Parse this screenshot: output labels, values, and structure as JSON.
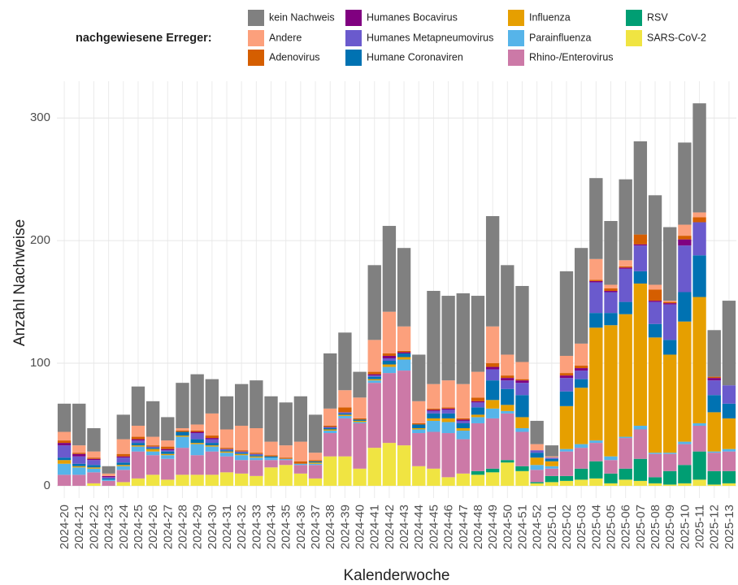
{
  "chart_data": {
    "type": "stacked_bar",
    "legend_title": "nachgewiesene Erreger:",
    "x_label": "Kalenderwoche",
    "y_label": "Anzahl Nachweise",
    "ylim": [
      -10,
      330
    ],
    "yticks": [
      0,
      100,
      200,
      300
    ],
    "grid": true,
    "categories": [
      "2024-20",
      "2024-21",
      "2024-22",
      "2024-23",
      "2024-24",
      "2024-25",
      "2024-26",
      "2024-27",
      "2024-28",
      "2024-29",
      "2024-30",
      "2024-31",
      "2024-32",
      "2024-33",
      "2024-34",
      "2024-35",
      "2024-36",
      "2024-37",
      "2024-38",
      "2024-39",
      "2024-40",
      "2024-41",
      "2024-42",
      "2024-43",
      "2024-44",
      "2024-45",
      "2024-46",
      "2024-47",
      "2024-48",
      "2024-49",
      "2024-50",
      "2024-51",
      "2024-52",
      "2025-01",
      "2025-02",
      "2025-03",
      "2025-04",
      "2025-05",
      "2025-06",
      "2025-07",
      "2025-08",
      "2025-09",
      "2025-10",
      "2025-11",
      "2025-12",
      "2025-13"
    ],
    "series": [
      {
        "name": "SARS-CoV-2",
        "color": "#f0e442",
        "values": [
          0,
          0,
          2,
          0,
          3,
          6,
          9,
          5,
          9,
          9,
          9,
          11,
          10,
          8,
          15,
          17,
          10,
          6,
          24,
          24,
          14,
          31,
          35,
          33,
          16,
          14,
          7,
          10,
          9,
          11,
          19,
          12,
          2,
          3,
          4,
          5,
          6,
          2,
          5,
          4,
          2,
          1,
          2,
          5,
          1,
          2
        ]
      },
      {
        "name": "RSV",
        "color": "#009e73",
        "values": [
          0,
          0,
          0,
          0,
          0,
          0,
          0,
          0,
          0,
          0,
          0,
          0,
          0,
          0,
          0,
          0,
          0,
          0,
          0,
          0,
          0,
          0,
          0,
          0,
          0,
          0,
          0,
          0,
          3,
          3,
          2,
          4,
          1,
          5,
          4,
          9,
          14,
          8,
          9,
          18,
          5,
          11,
          15,
          23,
          11,
          10
        ]
      },
      {
        "name": "Rhino-/Enterovirus",
        "color": "#cc79a7",
        "values": [
          9,
          9,
          9,
          4,
          10,
          22,
          16,
          17,
          22,
          16,
          19,
          13,
          11,
          13,
          6,
          4,
          7,
          11,
          19,
          31,
          37,
          53,
          57,
          61,
          27,
          30,
          36,
          28,
          39,
          41,
          38,
          28,
          10,
          6,
          20,
          17,
          15,
          11,
          25,
          24,
          19,
          14,
          17,
          21,
          15,
          16
        ]
      },
      {
        "name": "Parainfluenza",
        "color": "#56b4e9",
        "values": [
          9,
          6,
          3,
          1,
          3,
          4,
          3,
          3,
          9,
          9,
          4,
          3,
          4,
          2,
          2,
          1,
          1,
          1,
          2,
          2,
          1,
          2,
          5,
          9,
          3,
          9,
          9,
          7,
          5,
          8,
          2,
          3,
          4,
          2,
          2,
          3,
          2,
          3,
          1,
          3,
          1,
          1,
          2,
          2,
          1,
          2
        ]
      },
      {
        "name": "Influenza",
        "color": "#e69f00",
        "values": [
          3,
          1,
          1,
          0,
          1,
          1,
          2,
          1,
          1,
          1,
          1,
          1,
          1,
          1,
          0,
          0,
          0,
          1,
          1,
          1,
          1,
          1,
          2,
          2,
          1,
          2,
          3,
          2,
          2,
          7,
          5,
          9,
          6,
          4,
          35,
          46,
          92,
          107,
          100,
          116,
          94,
          80,
          98,
          103,
          32,
          25
        ]
      },
      {
        "name": "Humane Coronaviren",
        "color": "#0072b2",
        "values": [
          2,
          2,
          2,
          1,
          2,
          2,
          1,
          2,
          3,
          3,
          2,
          1,
          1,
          1,
          1,
          0,
          0,
          1,
          1,
          1,
          1,
          2,
          3,
          3,
          3,
          4,
          4,
          4,
          6,
          16,
          13,
          18,
          4,
          2,
          12,
          7,
          12,
          10,
          10,
          10,
          11,
          12,
          24,
          34,
          14,
          12
        ]
      },
      {
        "name": "Humanes Metapneumovirus",
        "color": "#6a5acd",
        "values": [
          10,
          6,
          4,
          1,
          4,
          2,
          1,
          1,
          0,
          5,
          3,
          1,
          1,
          1,
          0,
          0,
          0,
          0,
          1,
          1,
          0,
          1,
          2,
          0,
          0,
          2,
          3,
          2,
          4,
          9,
          7,
          10,
          2,
          1,
          11,
          7,
          25,
          17,
          27,
          21,
          18,
          29,
          38,
          27,
          12,
          15
        ]
      },
      {
        "name": "Humanes Bocavirus",
        "color": "#800080",
        "values": [
          2,
          2,
          1,
          1,
          1,
          1,
          0,
          1,
          0,
          1,
          1,
          0,
          0,
          0,
          0,
          0,
          0,
          0,
          0,
          0,
          0,
          1,
          2,
          1,
          0,
          1,
          1,
          1,
          1,
          2,
          2,
          2,
          0,
          0,
          2,
          2,
          1,
          1,
          1,
          1,
          1,
          1,
          5,
          0,
          2,
          0
        ]
      },
      {
        "name": "Adenovirus",
        "color": "#d55e00",
        "values": [
          2,
          1,
          1,
          0,
          2,
          2,
          1,
          2,
          1,
          1,
          2,
          1,
          1,
          1,
          1,
          1,
          2,
          1,
          1,
          4,
          1,
          2,
          2,
          1,
          1,
          1,
          1,
          1,
          3,
          3,
          2,
          1,
          0,
          0,
          2,
          2,
          1,
          2,
          1,
          8,
          9,
          1,
          3,
          4,
          1,
          0
        ]
      },
      {
        "name": "Andere",
        "color": "#fca07c",
        "values": [
          7,
          6,
          5,
          2,
          12,
          9,
          7,
          5,
          2,
          5,
          18,
          15,
          20,
          20,
          11,
          10,
          16,
          6,
          14,
          14,
          17,
          26,
          34,
          20,
          18,
          20,
          22,
          28,
          21,
          30,
          17,
          14,
          5,
          1,
          14,
          18,
          17,
          3,
          5,
          0,
          4,
          1,
          9,
          4,
          0,
          0
        ]
      },
      {
        "name": "kein Nachweis",
        "color": "#808080",
        "values": [
          23,
          34,
          19,
          6,
          20,
          32,
          29,
          19,
          37,
          41,
          28,
          27,
          34,
          39,
          37,
          35,
          37,
          31,
          45,
          47,
          21,
          61,
          70,
          64,
          38,
          76,
          69,
          74,
          62,
          90,
          73,
          62,
          19,
          9,
          69,
          78,
          66,
          52,
          66,
          76,
          73,
          60,
          67,
          89,
          38,
          69
        ]
      }
    ]
  }
}
